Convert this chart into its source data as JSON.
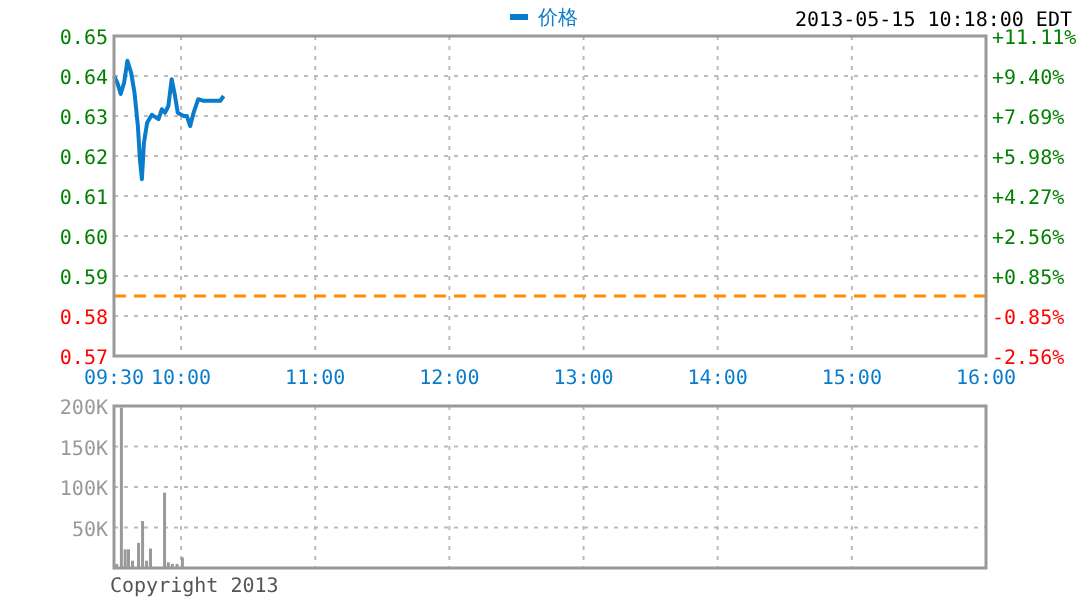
{
  "chart_data": [
    {
      "type": "line",
      "subtitle": "2013-05-15 10:18:00 EDT",
      "x": [
        9.5,
        9.525,
        9.55,
        9.575,
        9.6,
        9.628,
        9.653,
        9.678,
        9.693,
        9.708,
        9.723,
        9.747,
        9.782,
        9.832,
        9.857,
        9.88,
        9.905,
        9.93,
        9.955,
        9.975,
        10.02,
        10.043,
        10.068,
        10.093,
        10.128,
        10.167,
        10.292,
        10.317
      ],
      "series": [
        {
          "name": "价格",
          "color": "#0a7ccc",
          "values": [
            0.64,
            0.6383,
            0.6355,
            0.6383,
            0.6438,
            0.6408,
            0.6358,
            0.6275,
            0.6192,
            0.6142,
            0.6233,
            0.6283,
            0.6303,
            0.6292,
            0.6317,
            0.6308,
            0.6325,
            0.6392,
            0.635,
            0.6308,
            0.63,
            0.63,
            0.6275,
            0.6308,
            0.6342,
            0.6338,
            0.6338,
            0.635
          ]
        }
      ],
      "xlim": [
        9.5,
        16
      ],
      "xticks": [
        {
          "value": 9.5,
          "label": "09:30"
        },
        {
          "value": 10,
          "label": "10:00"
        },
        {
          "value": 11,
          "label": "11:00"
        },
        {
          "value": 12,
          "label": "12:00"
        },
        {
          "value": 13,
          "label": "13:00"
        },
        {
          "value": 14,
          "label": "14:00"
        },
        {
          "value": 15,
          "label": "15:00"
        },
        {
          "value": 16,
          "label": "16:00"
        }
      ],
      "ylim": [
        0.57,
        0.65
      ],
      "yticks": [
        0.57,
        0.58,
        0.59,
        {
          "value": 0.6,
          "label": "0.60"
        },
        0.61,
        0.62,
        0.63,
        0.64,
        0.65
      ],
      "y2lim": [
        -2.56,
        11.11
      ],
      "y2ticks": [
        {
          "value": -2.56,
          "label": "-2.56%"
        },
        {
          "value": -0.85,
          "label": "-0.85%"
        },
        {
          "value": 0.85,
          "label": "+0.85%"
        },
        {
          "value": 2.56,
          "label": "+2.56%"
        },
        {
          "value": 4.27,
          "label": "+4.27%"
        },
        {
          "value": 5.98,
          "label": "+5.98%"
        },
        {
          "value": 7.69,
          "label": "+7.69%"
        },
        {
          "value": 9.4,
          "label": "+9.40%"
        },
        {
          "value": 11.11,
          "label": "+11.11%"
        }
      ],
      "ref_lines": [
        {
          "axis": "y",
          "value": 0.585,
          "color": "#ff8c00",
          "line_style": "dashed"
        }
      ],
      "grid": true,
      "legend": "top"
    },
    {
      "type": "bar",
      "x": [
        9.52,
        9.555,
        9.583,
        9.608,
        9.638,
        9.683,
        9.713,
        9.743,
        9.772,
        9.817,
        9.877,
        9.905,
        9.935,
        9.97,
        10.01
      ],
      "series": [
        {
          "color": "#999999",
          "values": [
            5000,
            198000,
            23000,
            23000,
            9000,
            31000,
            58000,
            9000,
            24000,
            1000,
            93000,
            7000,
            5000,
            5000,
            13000
          ]
        }
      ],
      "xlim": [
        9.5,
        16
      ],
      "ylim": [
        0,
        200000
      ],
      "yticks": [
        {
          "value": 50000,
          "label": "50K"
        },
        {
          "value": 100000,
          "label": "100K"
        },
        {
          "value": 150000,
          "label": "150K"
        },
        {
          "value": 200000,
          "label": "200K"
        }
      ],
      "tick_labels": "y",
      "grid": true,
      "annotations": [
        "Copyright 2013"
      ]
    }
  ]
}
